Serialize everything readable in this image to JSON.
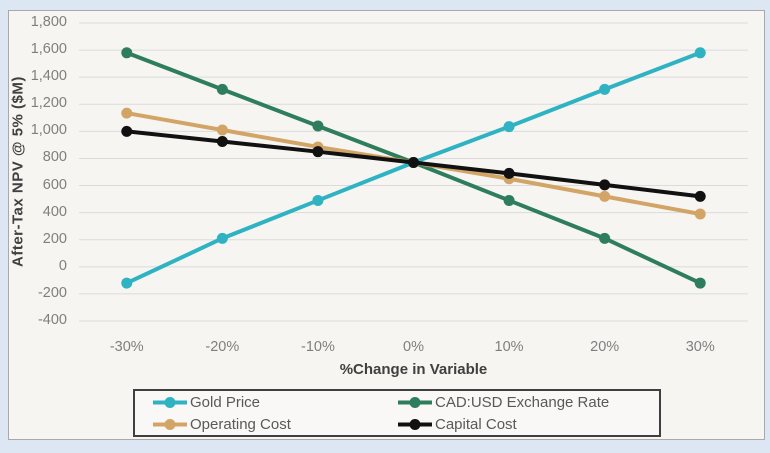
{
  "window": {
    "background_color": "#DCE7F3",
    "chart_background_color": "#F6F5F2",
    "chart_border_color": "#A9A9A9"
  },
  "chart": {
    "grid_color": "#DBDBDB",
    "tick_label_color": "#7F7F7F",
    "axis_title_color": "#404040",
    "legend_text_color": "#595959",
    "legend_border_color": "#3F3F3F"
  },
  "chart_data": {
    "type": "line",
    "title": "",
    "xlabel": "%Change in Variable",
    "ylabel": "After-Tax NPV @ 5% ($M)",
    "categories": [
      "-30%",
      "-20%",
      "-10%",
      "0%",
      "10%",
      "20%",
      "30%"
    ],
    "series": [
      {
        "name": "Gold Price",
        "color": "#2FB3C2",
        "values": [
          -120,
          210,
          490,
          770,
          1035,
          1310,
          1580
        ]
      },
      {
        "name": "CAD:USD Exchange Rate",
        "color": "#2E7D5C",
        "values": [
          1580,
          1310,
          1040,
          770,
          490,
          210,
          -120
        ]
      },
      {
        "name": "Operating Cost",
        "color": "#D2A567",
        "values": [
          1135,
          1010,
          885,
          770,
          650,
          520,
          390
        ]
      },
      {
        "name": "Capital Cost",
        "color": "#111111",
        "values": [
          1000,
          925,
          850,
          770,
          690,
          605,
          520
        ]
      }
    ],
    "ylim": [
      -400,
      1800
    ],
    "ytick_step": 200,
    "ytick_labels": [
      "1,800",
      "1,600",
      "1,400",
      "1,200",
      "1,000",
      "800",
      "600",
      "400",
      "200",
      "0",
      "-200",
      "-400"
    ],
    "grid": "horizontal-only",
    "legend_position": "bottom",
    "legend_columns": 2,
    "marker": "circle"
  }
}
